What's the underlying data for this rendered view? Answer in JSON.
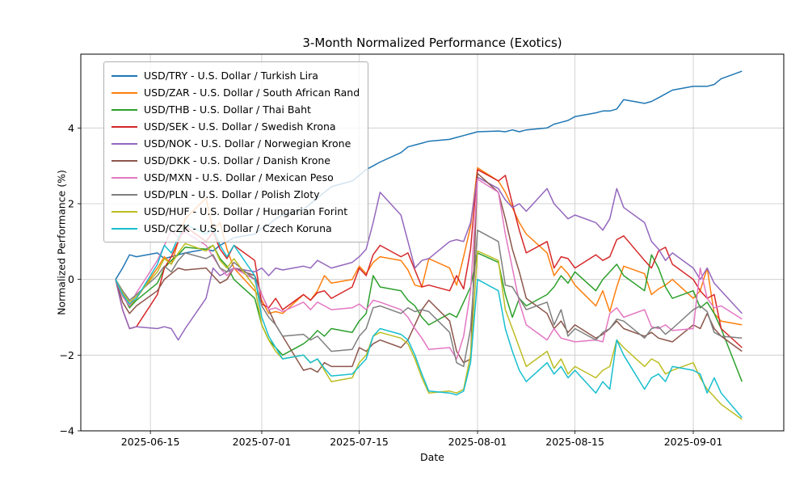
{
  "figure": {
    "title": "3-Month Normalized Performance (Exotics)",
    "xlabel": "Date",
    "ylabel": "Normalized Performance (%)"
  },
  "chart_data": {
    "type": "line",
    "title": "3-Month Normalized Performance (Exotics)",
    "xlabel": "Date",
    "ylabel": "Normalized Performance (%)",
    "grid": true,
    "legend_position": "upper-left",
    "ylim": [
      -4.0,
      5.95
    ],
    "yticks": [
      -4,
      -2,
      0,
      2,
      4
    ],
    "xlim": [
      "2025-06-05",
      "2025-09-14"
    ],
    "xticks": [
      "2025-06-15",
      "2025-07-01",
      "2025-07-15",
      "2025-08-01",
      "2025-08-15",
      "2025-09-01"
    ],
    "dates": [
      "2025-06-10",
      "2025-06-11",
      "2025-06-12",
      "2025-06-13",
      "2025-06-16",
      "2025-06-17",
      "2025-06-18",
      "2025-06-19",
      "2025-06-20",
      "2025-06-23",
      "2025-06-24",
      "2025-06-25",
      "2025-06-26",
      "2025-06-27",
      "2025-06-30",
      "2025-07-01",
      "2025-07-02",
      "2025-07-03",
      "2025-07-04",
      "2025-07-07",
      "2025-07-08",
      "2025-07-09",
      "2025-07-10",
      "2025-07-11",
      "2025-07-14",
      "2025-07-15",
      "2025-07-16",
      "2025-07-17",
      "2025-07-18",
      "2025-07-21",
      "2025-07-22",
      "2025-07-23",
      "2025-07-24",
      "2025-07-25",
      "2025-07-28",
      "2025-07-29",
      "2025-07-30",
      "2025-07-31",
      "2025-08-01",
      "2025-08-04",
      "2025-08-05",
      "2025-08-06",
      "2025-08-07",
      "2025-08-08",
      "2025-08-11",
      "2025-08-12",
      "2025-08-13",
      "2025-08-14",
      "2025-08-15",
      "2025-08-18",
      "2025-08-19",
      "2025-08-20",
      "2025-08-21",
      "2025-08-22",
      "2025-08-25",
      "2025-08-26",
      "2025-08-27",
      "2025-08-28",
      "2025-08-29",
      "2025-09-01",
      "2025-09-02",
      "2025-09-03",
      "2025-09-04",
      "2025-09-05",
      "2025-09-08"
    ],
    "series": [
      {
        "name": "USD/TRY",
        "label": "USD/TRY - U.S. Dollar / Turkish Lira",
        "color": "#1f77b4",
        "values": [
          0.0,
          0.3,
          0.65,
          0.6,
          0.7,
          0.55,
          0.6,
          0.65,
          0.7,
          0.8,
          0.75,
          0.9,
          1.0,
          1.1,
          1.2,
          1.35,
          1.45,
          1.6,
          1.7,
          1.85,
          2.0,
          2.15,
          2.3,
          2.45,
          2.6,
          2.75,
          2.9,
          3.0,
          3.1,
          3.35,
          3.5,
          3.55,
          3.6,
          3.65,
          3.7,
          3.75,
          3.8,
          3.85,
          3.9,
          3.92,
          3.9,
          3.95,
          3.9,
          3.95,
          4.0,
          4.1,
          4.15,
          4.2,
          4.3,
          4.4,
          4.45,
          4.45,
          4.5,
          4.75,
          4.65,
          4.7,
          4.8,
          4.9,
          5.0,
          5.1,
          5.1,
          5.1,
          5.15,
          5.3,
          5.5
        ]
      },
      {
        "name": "USD/ZAR",
        "label": "USD/ZAR - U.S. Dollar / South African Rand",
        "color": "#ff7f0e",
        "values": [
          0.0,
          -0.45,
          -0.7,
          -0.5,
          0.3,
          0.6,
          0.4,
          1.0,
          1.6,
          2.15,
          1.3,
          1.5,
          0.8,
          0.3,
          -0.3,
          -0.55,
          -0.9,
          -0.85,
          -0.9,
          -0.4,
          -0.55,
          -0.3,
          0.1,
          -0.1,
          0.0,
          0.35,
          0.15,
          0.45,
          0.6,
          0.5,
          0.25,
          -0.15,
          -0.2,
          0.55,
          0.3,
          -0.15,
          0.6,
          1.4,
          2.95,
          2.6,
          2.3,
          1.9,
          1.5,
          1.2,
          0.7,
          0.1,
          0.35,
          0.15,
          -0.15,
          -0.7,
          -0.3,
          -0.85,
          -0.2,
          0.35,
          0.15,
          -0.4,
          -0.25,
          -0.15,
          0.0,
          -0.5,
          -0.3,
          0.3,
          -0.9,
          -1.1,
          -1.2
        ]
      },
      {
        "name": "USD/THB",
        "label": "USD/THB - U.S. Dollar / Thai Baht",
        "color": "#2ca02c",
        "values": [
          0.0,
          -0.4,
          -0.75,
          -0.55,
          -0.1,
          0.3,
          0.5,
          0.65,
          0.85,
          0.8,
          0.9,
          0.55,
          0.35,
          0.0,
          -0.5,
          -1.2,
          -1.6,
          -1.8,
          -2.0,
          -1.7,
          -1.55,
          -1.35,
          -1.5,
          -1.3,
          -1.4,
          -1.1,
          -0.9,
          0.1,
          -0.2,
          -0.3,
          -0.55,
          -0.7,
          -1.0,
          -1.2,
          -0.9,
          -1.0,
          -0.6,
          -0.2,
          0.7,
          0.45,
          -0.4,
          -1.0,
          -0.5,
          -0.7,
          -0.4,
          -0.2,
          0.1,
          -0.1,
          0.2,
          -0.3,
          0.0,
          0.2,
          0.4,
          0.1,
          -0.3,
          0.65,
          0.3,
          -0.2,
          -0.5,
          -0.3,
          -0.75,
          -0.6,
          -0.9,
          -1.3,
          -2.7
        ]
      },
      {
        "name": "USD/SEK",
        "label": "USD/SEK - U.S. Dollar / Swedish Krona",
        "color": "#d62728",
        "values": [
          0.0,
          -0.8,
          -1.3,
          -1.25,
          -0.4,
          0.3,
          0.6,
          1.0,
          1.4,
          1.0,
          1.25,
          0.8,
          0.55,
          0.9,
          0.5,
          -0.65,
          -0.75,
          -0.5,
          -0.8,
          -0.4,
          -0.55,
          -0.35,
          -0.3,
          -0.5,
          -0.2,
          0.3,
          0.1,
          0.65,
          0.9,
          0.6,
          0.7,
          0.25,
          -0.2,
          -0.15,
          -0.3,
          0.1,
          -0.25,
          0.8,
          2.9,
          2.6,
          2.75,
          2.0,
          1.3,
          0.7,
          1.0,
          0.3,
          0.6,
          0.55,
          0.3,
          0.65,
          0.5,
          0.6,
          1.05,
          1.15,
          0.5,
          0.3,
          0.75,
          0.85,
          0.4,
          0.0,
          -0.3,
          -0.5,
          -0.4,
          -1.3,
          -1.8
        ]
      },
      {
        "name": "USD/NOK",
        "label": "USD/NOK - U.S. Dollar / Norwegian Krone",
        "color": "#9467bd",
        "values": [
          0.0,
          -0.8,
          -1.3,
          -1.25,
          -1.3,
          -1.25,
          -1.3,
          -1.6,
          -1.3,
          -0.5,
          0.3,
          0.1,
          0.2,
          0.3,
          0.2,
          0.3,
          0.1,
          0.3,
          0.25,
          0.35,
          0.3,
          0.5,
          0.4,
          0.3,
          0.45,
          0.6,
          0.8,
          1.5,
          2.3,
          1.7,
          1.0,
          0.3,
          0.5,
          0.55,
          1.0,
          1.05,
          1.0,
          1.5,
          2.7,
          2.4,
          2.1,
          1.9,
          2.0,
          1.8,
          2.4,
          2.0,
          1.8,
          1.6,
          1.7,
          1.5,
          1.3,
          1.6,
          2.4,
          1.9,
          1.5,
          1.0,
          0.8,
          0.5,
          0.7,
          0.3,
          0.0,
          0.3,
          -0.1,
          -0.3,
          -0.9
        ]
      },
      {
        "name": "USD/DKK",
        "label": "USD/DKK - U.S. Dollar / Danish Krone",
        "color": "#8c564b",
        "values": [
          0.0,
          -0.6,
          -0.9,
          -0.7,
          -0.3,
          0.0,
          0.15,
          0.3,
          0.25,
          0.3,
          0.1,
          -0.1,
          0.0,
          0.3,
          0.1,
          -0.4,
          -0.8,
          -1.2,
          -1.5,
          -2.4,
          -2.35,
          -2.45,
          -2.2,
          -2.3,
          -2.3,
          -1.8,
          -1.9,
          -1.7,
          -1.6,
          -1.8,
          -1.6,
          -1.2,
          -0.8,
          -0.55,
          -1.1,
          -1.9,
          -2.2,
          -2.1,
          2.8,
          2.3,
          1.6,
          0.8,
          0.2,
          -0.5,
          -0.9,
          -1.3,
          -1.1,
          -1.4,
          -1.2,
          -1.55,
          -1.45,
          -1.3,
          -1.1,
          -1.3,
          -1.5,
          -1.4,
          -1.55,
          -1.6,
          -1.65,
          -1.2,
          -1.3,
          -0.9,
          -1.3,
          -1.5,
          -1.9
        ]
      },
      {
        "name": "USD/MXN",
        "label": "USD/MXN - U.S. Dollar / Mexican Peso",
        "color": "#e377c2",
        "values": [
          0.0,
          -0.45,
          -0.7,
          -0.35,
          0.5,
          0.9,
          1.3,
          1.1,
          1.25,
          0.9,
          0.6,
          0.3,
          0.1,
          0.3,
          0.0,
          -0.4,
          -0.8,
          -0.75,
          -0.85,
          -0.6,
          -0.8,
          -0.6,
          -0.7,
          -0.8,
          -0.75,
          -0.65,
          -0.8,
          -0.55,
          -0.6,
          -0.8,
          -1.0,
          -1.3,
          -1.55,
          -1.85,
          -1.8,
          -2.1,
          -1.5,
          -0.3,
          2.65,
          2.3,
          1.2,
          0.3,
          -0.6,
          -1.2,
          -1.6,
          -1.3,
          -1.55,
          -1.6,
          -1.65,
          -1.6,
          -1.65,
          -0.9,
          -0.75,
          -1.0,
          -0.8,
          -1.25,
          -1.3,
          -1.2,
          -1.35,
          -1.3,
          0.3,
          -0.5,
          -0.75,
          -0.7,
          -1.05
        ]
      },
      {
        "name": "USD/PLN",
        "label": "USD/PLN - U.S. Dollar / Polish Zloty",
        "color": "#7f7f7f",
        "values": [
          0.0,
          -0.3,
          -0.55,
          -0.4,
          0.1,
          0.35,
          0.2,
          0.5,
          0.7,
          0.55,
          0.65,
          0.3,
          0.2,
          0.45,
          0.0,
          -0.7,
          -1.0,
          -1.2,
          -1.5,
          -1.45,
          -1.6,
          -1.5,
          -1.7,
          -1.9,
          -1.85,
          -1.5,
          -1.3,
          -0.75,
          -0.7,
          -0.9,
          -0.75,
          -0.85,
          -0.8,
          -0.85,
          -1.4,
          -2.2,
          -2.3,
          -1.3,
          1.3,
          1.0,
          -0.15,
          -0.2,
          -0.5,
          -0.8,
          -0.6,
          -1.2,
          -0.8,
          -1.5,
          -1.3,
          -1.6,
          -1.4,
          -1.3,
          -1.05,
          -1.1,
          -1.55,
          -1.3,
          -1.25,
          -1.45,
          -1.3,
          -0.8,
          -0.7,
          -0.85,
          -1.4,
          -1.5,
          -1.55
        ]
      },
      {
        "name": "USD/HUF",
        "label": "USD/HUF - U.S. Dollar / Hungarian Forint",
        "color": "#bcbd22",
        "values": [
          0.0,
          -0.35,
          -0.6,
          -0.45,
          0.2,
          0.55,
          0.4,
          0.7,
          0.95,
          0.75,
          0.9,
          0.5,
          0.3,
          0.55,
          -0.2,
          -1.2,
          -1.6,
          -1.9,
          -2.1,
          -2.0,
          -2.2,
          -2.1,
          -2.4,
          -2.7,
          -2.6,
          -2.2,
          -2.0,
          -1.5,
          -1.4,
          -1.55,
          -1.7,
          -2.1,
          -2.6,
          -3.0,
          -2.95,
          -3.0,
          -2.9,
          -2.0,
          0.75,
          0.5,
          -0.8,
          -1.3,
          -1.8,
          -2.3,
          -1.9,
          -2.35,
          -2.1,
          -2.5,
          -2.3,
          -2.6,
          -2.4,
          -2.3,
          -1.6,
          -1.8,
          -2.3,
          -2.1,
          -2.2,
          -2.5,
          -2.4,
          -2.2,
          -2.6,
          -2.9,
          -3.1,
          -3.3,
          -3.7
        ]
      },
      {
        "name": "USD/CZK",
        "label": "USD/CZK - U.S. Dollar / Czech Koruna",
        "color": "#17becf",
        "values": [
          0.0,
          -0.4,
          -0.65,
          -0.5,
          0.4,
          0.9,
          0.7,
          1.1,
          1.45,
          1.2,
          1.35,
          0.9,
          0.6,
          0.9,
          0.1,
          -1.0,
          -1.5,
          -1.8,
          -2.1,
          -2.0,
          -2.2,
          -2.1,
          -2.35,
          -2.55,
          -2.5,
          -2.3,
          -2.1,
          -1.5,
          -1.3,
          -1.45,
          -1.6,
          -2.0,
          -2.5,
          -2.95,
          -3.0,
          -3.05,
          -2.95,
          -2.2,
          0.0,
          -0.3,
          -1.3,
          -1.9,
          -2.4,
          -2.7,
          -2.2,
          -2.5,
          -2.3,
          -2.6,
          -2.4,
          -3.0,
          -2.7,
          -2.9,
          -1.6,
          -2.0,
          -2.9,
          -2.6,
          -2.5,
          -2.7,
          -2.3,
          -2.4,
          -2.5,
          -3.0,
          -2.6,
          -3.0,
          -3.65
        ]
      }
    ]
  }
}
